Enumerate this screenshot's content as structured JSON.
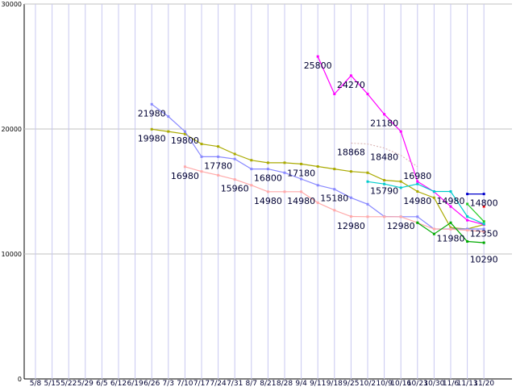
{
  "chart_data": {
    "type": "line",
    "title": "",
    "xlabel": "",
    "ylabel": "",
    "ylim": [
      0,
      30000
    ],
    "yticks": [
      "0",
      "10000",
      "20000",
      "30000"
    ],
    "grid": true,
    "legend": "none",
    "categories": [
      "5/8",
      "5/15",
      "5/22",
      "5/29",
      "6/5",
      "6/12",
      "6/19",
      "6/26",
      "7/3",
      "7/10",
      "7/17",
      "7/24",
      "7/31",
      "8/7",
      "8/21",
      "8/28",
      "9/4",
      "9/11",
      "9/18",
      "9/25",
      "10/2",
      "10/9",
      "10/16",
      "10/23",
      "10/30",
      "11/6",
      "11/13",
      "11/20"
    ],
    "xtick_labels": [
      "5/8",
      "5/15",
      "5/22",
      "5/29",
      "6/5",
      "6/12",
      "6/19",
      "6/26",
      "7/3",
      "7/10",
      "7/17",
      "7/24",
      "7/31",
      "8/7",
      "8/21",
      "8/28",
      "9/4",
      "9/11",
      "9/18",
      "9/25",
      "10/2",
      "10/9",
      "10/16",
      "10/23",
      "10/30",
      "11/6",
      "11/13",
      "11/20"
    ],
    "series": [
      {
        "color": "#aaaa00",
        "dash": false,
        "values": [
          null,
          null,
          null,
          null,
          null,
          null,
          null,
          19980,
          19800,
          19600,
          18800,
          18600,
          18000,
          17500,
          17300,
          17300,
          17200,
          17000,
          16800,
          16600,
          16500,
          15900,
          15800,
          15000,
          14500,
          12100,
          12000,
          12350
        ]
      },
      {
        "color": "#8888ff",
        "dash": false,
        "values": [
          null,
          null,
          null,
          null,
          null,
          null,
          null,
          21980,
          21000,
          19800,
          17780,
          17780,
          17600,
          16800,
          16800,
          16500,
          16000,
          15500,
          15180,
          14500,
          13980,
          13000,
          12980,
          12980,
          12000,
          12000,
          12000,
          12000
        ]
      },
      {
        "color": "#ffaaaa",
        "dash": false,
        "values": [
          null,
          null,
          null,
          null,
          null,
          null,
          null,
          null,
          null,
          16980,
          16600,
          16300,
          15960,
          15500,
          14980,
          14980,
          14980,
          14100,
          13500,
          13000,
          12980,
          12980,
          12980,
          12500,
          12000,
          11980,
          11900,
          11800
        ]
      },
      {
        "color": "#ff00ff",
        "dash": false,
        "values": [
          null,
          null,
          null,
          null,
          null,
          null,
          null,
          null,
          null,
          null,
          null,
          null,
          null,
          null,
          null,
          null,
          null,
          25800,
          22800,
          24270,
          22800,
          21180,
          19800,
          15800,
          14980,
          13800,
          12700,
          12350
        ]
      },
      {
        "color": "#ddbbbb",
        "dash": true,
        "values": [
          null,
          null,
          null,
          null,
          null,
          null,
          null,
          null,
          null,
          null,
          null,
          null,
          null,
          null,
          null,
          null,
          null,
          null,
          null,
          18868,
          18800,
          18480,
          17900,
          16980,
          null,
          null,
          null,
          null
        ]
      },
      {
        "color": "#00cccc",
        "dash": false,
        "values": [
          null,
          null,
          null,
          null,
          null,
          null,
          null,
          null,
          null,
          null,
          null,
          null,
          null,
          null,
          null,
          null,
          null,
          null,
          null,
          null,
          15790,
          15600,
          15300,
          15600,
          15000,
          15000,
          13000,
          12400
        ]
      },
      {
        "color": "#00aa00",
        "dash": false,
        "values": [
          null,
          null,
          null,
          null,
          null,
          null,
          null,
          null,
          null,
          null,
          null,
          null,
          null,
          null,
          null,
          null,
          null,
          null,
          null,
          null,
          null,
          null,
          null,
          12500,
          11600,
          12500,
          11000,
          10900
        ]
      },
      {
        "color": "#22cc22",
        "dash": false,
        "values": [
          null,
          null,
          null,
          null,
          null,
          null,
          null,
          null,
          null,
          null,
          null,
          null,
          null,
          null,
          null,
          null,
          null,
          null,
          null,
          null,
          null,
          null,
          null,
          null,
          null,
          null,
          14000,
          12600
        ]
      },
      {
        "color": "#0000cc",
        "dash": false,
        "values": [
          null,
          null,
          null,
          null,
          null,
          null,
          null,
          null,
          null,
          null,
          null,
          null,
          null,
          null,
          null,
          null,
          null,
          null,
          null,
          null,
          null,
          null,
          null,
          null,
          null,
          null,
          14800,
          14800
        ]
      },
      {
        "color": "#ff0000",
        "dash": false,
        "values": [
          null,
          null,
          null,
          null,
          null,
          null,
          null,
          null,
          null,
          null,
          null,
          null,
          null,
          null,
          null,
          null,
          null,
          null,
          null,
          null,
          null,
          null,
          null,
          null,
          null,
          null,
          null,
          13800
        ]
      }
    ],
    "data_labels": [
      {
        "text": "25800",
        "x": "9/11",
        "y": 25800
      },
      {
        "text": "24270",
        "x": "9/25",
        "y": 24270
      },
      {
        "text": "21980",
        "x": "6/26",
        "y": 21980
      },
      {
        "text": "21180",
        "x": "10/9",
        "y": 21180
      },
      {
        "text": "19980",
        "x": "6/26",
        "y": 19980
      },
      {
        "text": "19800",
        "x": "7/10",
        "y": 19800
      },
      {
        "text": "18868",
        "x": "9/25",
        "y": 18868
      },
      {
        "text": "18480",
        "x": "10/9",
        "y": 18480
      },
      {
        "text": "17780",
        "x": "7/24",
        "y": 17780
      },
      {
        "text": "17180",
        "x": "9/4",
        "y": 17180
      },
      {
        "text": "16980",
        "x": "7/10",
        "y": 16980
      },
      {
        "text": "16980",
        "x": "10/23",
        "y": 16980
      },
      {
        "text": "16800",
        "x": "8/21",
        "y": 16800
      },
      {
        "text": "15960",
        "x": "7/31",
        "y": 15960
      },
      {
        "text": "15790",
        "x": "10/9",
        "y": 15790
      },
      {
        "text": "15180",
        "x": "9/18",
        "y": 15180
      },
      {
        "text": "14980",
        "x": "8/21",
        "y": 14980
      },
      {
        "text": "14980",
        "x": "9/4",
        "y": 14980
      },
      {
        "text": "14980",
        "x": "10/23",
        "y": 14980
      },
      {
        "text": "14980",
        "x": "11/6",
        "y": 14980
      },
      {
        "text": "14800",
        "x": "11/20",
        "y": 14800
      },
      {
        "text": "12980",
        "x": "9/25",
        "y": 12980
      },
      {
        "text": "12980",
        "x": "10/16",
        "y": 12980
      },
      {
        "text": "12350",
        "x": "11/20",
        "y": 12350
      },
      {
        "text": "11980",
        "x": "11/6",
        "y": 11980
      },
      {
        "text": "10290",
        "x": "11/20",
        "y": 10290
      }
    ]
  }
}
